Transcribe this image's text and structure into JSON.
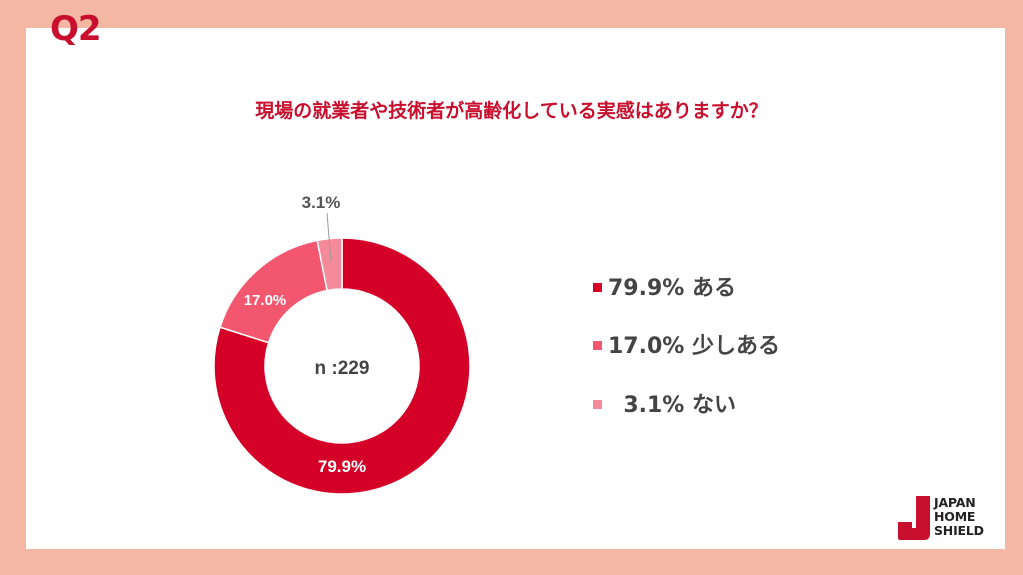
{
  "header": {
    "question_number": "Q2",
    "question_text": "現場の就業者や技術者が高齢化している実感はありますか？"
  },
  "chart_data": {
    "type": "pie",
    "donut": true,
    "center_label": "n :229",
    "slices": [
      {
        "label": "ある",
        "value": 79.9,
        "display": "79.9%",
        "color": "#d50027"
      },
      {
        "label": "少しある",
        "value": 17.0,
        "display": "17.0%",
        "color": "#f2576f"
      },
      {
        "label": "ない",
        "value": 3.1,
        "display": "3.1%",
        "color": "#f48a9a"
      }
    ],
    "legend": [
      {
        "text": "79.9% ある",
        "color": "#d50027"
      },
      {
        "text": "17.0% 少しある",
        "color": "#f2576f"
      },
      {
        "text": "  3.1% ない",
        "color": "#f48a9a"
      }
    ],
    "legend_position": "right"
  },
  "brand": {
    "logo_lines": [
      "JAPAN",
      "HOME",
      "SHIELD"
    ],
    "logo_color": "#c8102e"
  }
}
